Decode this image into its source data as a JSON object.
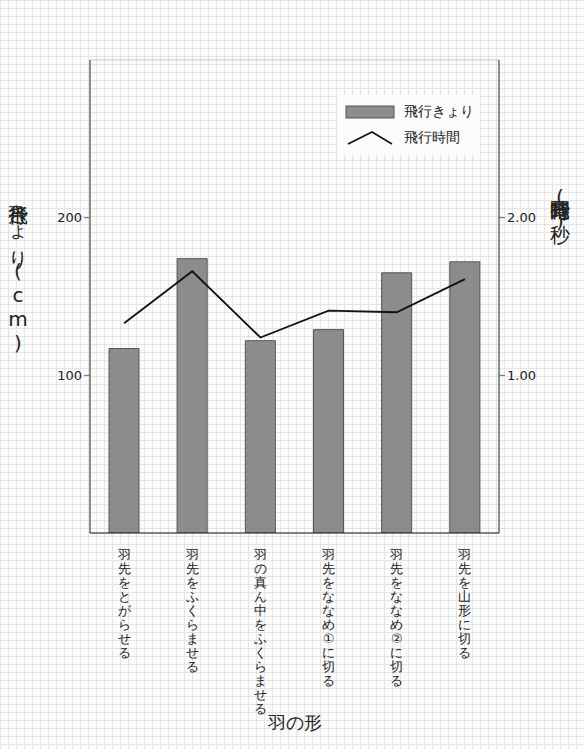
{
  "chart_data": {
    "type": "bar",
    "x_label": "羽の形",
    "y_label": "飛行きょり(cm)",
    "y2_label": "飛行時間(秒)",
    "categories": [
      "羽先をとがらせる",
      "羽先をふくらませる",
      "羽の真ん中をふくらませる",
      "羽先をななめ①に切る",
      "羽先をななめ②に切る",
      "羽先を山形に切る"
    ],
    "series": [
      {
        "name": "飛行きょり",
        "type": "bar",
        "color": "#8c8c8c",
        "values": [
          117,
          174,
          122,
          129,
          165,
          172
        ]
      },
      {
        "name": "飛行時間",
        "type": "line",
        "axis": "y2",
        "color": "#111111",
        "values": [
          1.33,
          1.66,
          1.24,
          1.41,
          1.4,
          1.61
        ]
      }
    ],
    "ylim": [
      0,
      300
    ],
    "yticks": [
      100,
      200
    ],
    "y2lim": [
      0,
      3
    ],
    "y2ticks": [
      {
        "value": 1,
        "label": "1.00"
      },
      {
        "value": 2,
        "label": "2.00"
      }
    ],
    "grid": true,
    "legend": "upper right"
  }
}
